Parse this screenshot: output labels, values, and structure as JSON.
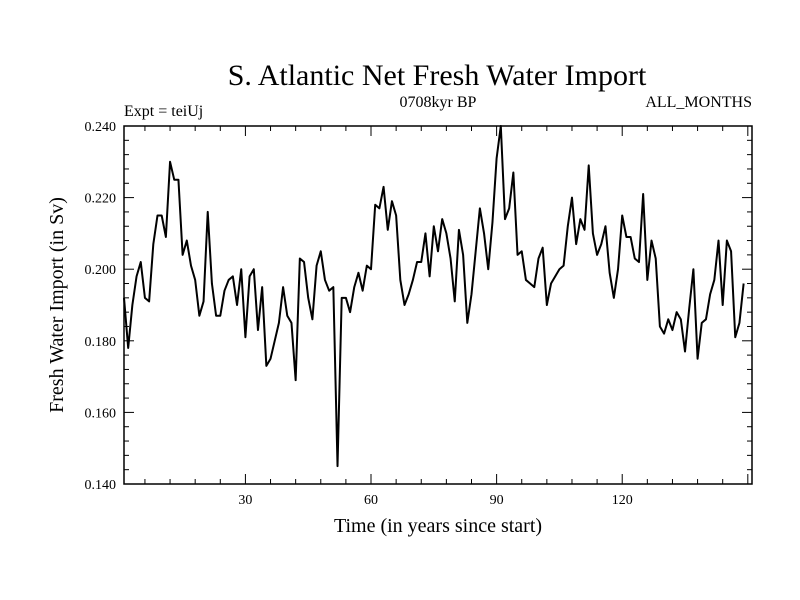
{
  "chart_data": {
    "type": "line",
    "title": "S. Atlantic Net Fresh Water Import",
    "subtitle_left": "Expt = teiUj",
    "subtitle_center": "0708kyr BP",
    "subtitle_right": "ALL_MONTHS",
    "xlabel": "Time (in years since start)",
    "ylabel": "Fresh Water Import (in Sv)",
    "xlim": [
      1,
      151
    ],
    "ylim": [
      0.14,
      0.24
    ],
    "xticks": [
      30,
      60,
      90,
      120
    ],
    "xtick_labels": [
      "30",
      "60",
      "90",
      "120"
    ],
    "yticks": [
      0.14,
      0.16,
      0.18,
      0.2,
      0.22,
      0.24
    ],
    "ytick_labels": [
      "0.140",
      "0.160",
      "0.180",
      "0.200",
      "0.220",
      "0.240"
    ],
    "grid": false,
    "series": [
      {
        "name": "Net Fresh Water Import",
        "color": "#000000",
        "values": [
          0.192,
          0.178,
          0.19,
          0.198,
          0.202,
          0.192,
          0.191,
          0.207,
          0.215,
          0.215,
          0.209,
          0.23,
          0.225,
          0.225,
          0.204,
          0.208,
          0.201,
          0.197,
          0.187,
          0.191,
          0.216,
          0.196,
          0.187,
          0.187,
          0.194,
          0.197,
          0.198,
          0.19,
          0.2,
          0.181,
          0.198,
          0.2,
          0.183,
          0.195,
          0.173,
          0.175,
          0.18,
          0.185,
          0.195,
          0.187,
          0.185,
          0.169,
          0.203,
          0.202,
          0.192,
          0.186,
          0.201,
          0.205,
          0.197,
          0.194,
          0.195,
          0.145,
          0.192,
          0.192,
          0.188,
          0.195,
          0.199,
          0.194,
          0.201,
          0.2,
          0.218,
          0.217,
          0.223,
          0.211,
          0.219,
          0.215,
          0.197,
          0.19,
          0.193,
          0.197,
          0.202,
          0.202,
          0.21,
          0.198,
          0.212,
          0.205,
          0.214,
          0.21,
          0.203,
          0.191,
          0.211,
          0.204,
          0.185,
          0.193,
          0.205,
          0.217,
          0.21,
          0.2,
          0.213,
          0.231,
          0.24,
          0.214,
          0.217,
          0.227,
          0.204,
          0.205,
          0.197,
          0.196,
          0.195,
          0.203,
          0.206,
          0.19,
          0.196,
          0.198,
          0.2,
          0.201,
          0.212,
          0.22,
          0.207,
          0.214,
          0.211,
          0.229,
          0.21,
          0.204,
          0.207,
          0.212,
          0.199,
          0.192,
          0.2,
          0.215,
          0.209,
          0.209,
          0.203,
          0.202,
          0.221,
          0.197,
          0.208,
          0.203,
          0.184,
          0.182,
          0.186,
          0.183,
          0.188,
          0.186,
          0.177,
          0.189,
          0.2,
          0.175,
          0.185,
          0.186,
          0.193,
          0.197,
          0.208,
          0.19,
          0.208,
          0.205,
          0.181,
          0.185,
          0.196
        ]
      }
    ]
  }
}
